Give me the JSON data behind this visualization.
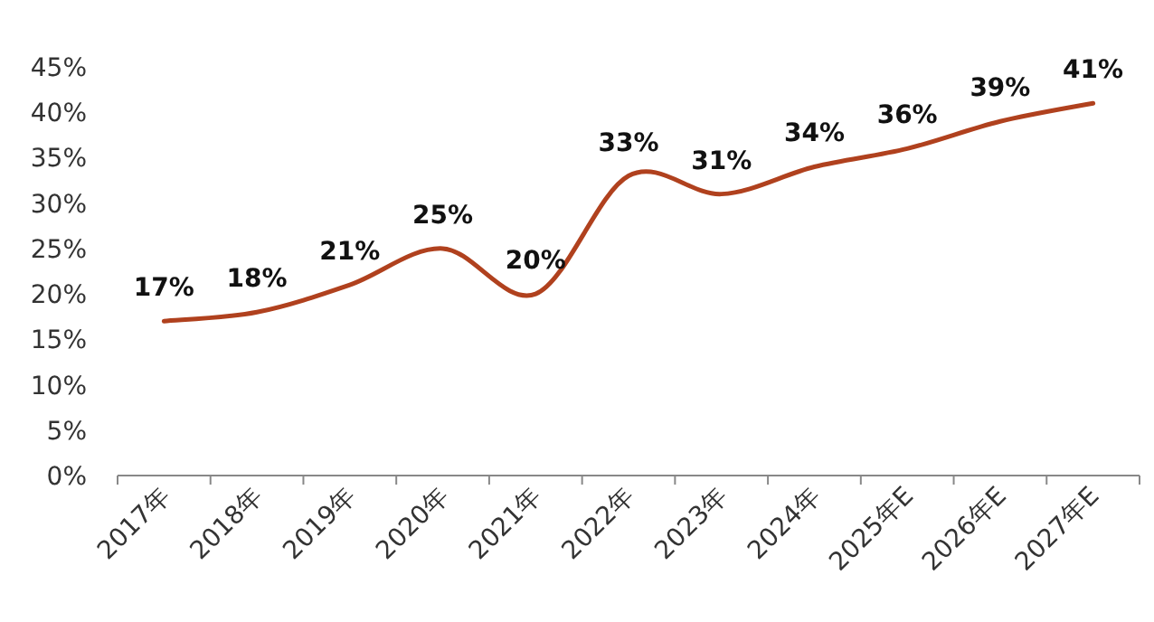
{
  "chart_data": {
    "type": "line",
    "categories": [
      "2017年",
      "2018年",
      "2019年",
      "2020年",
      "2021年",
      "2022年",
      "2023年",
      "2024年",
      "2025年E",
      "2026年E",
      "2027年E"
    ],
    "series": [
      {
        "color": "#b0411e",
        "values": [
          17,
          18,
          21,
          25,
          20,
          33,
          31,
          34,
          36,
          39,
          41
        ],
        "value_labels": [
          "17%",
          "18%",
          "21%",
          "25%",
          "20%",
          "33%",
          "31%",
          "34%",
          "36%",
          "39%",
          "41%"
        ]
      }
    ],
    "ylim": [
      0,
      45
    ],
    "yticks": [
      {
        "value": 0,
        "label": "0%"
      },
      {
        "value": 5,
        "label": "5%"
      },
      {
        "value": 10,
        "label": "10%"
      },
      {
        "value": 15,
        "label": "15%"
      },
      {
        "value": 20,
        "label": "20%"
      },
      {
        "value": 25,
        "label": "25%"
      },
      {
        "value": 30,
        "label": "30%"
      },
      {
        "value": 35,
        "label": "35%"
      },
      {
        "value": 40,
        "label": "40%"
      },
      {
        "value": 45,
        "label": "45%"
      }
    ],
    "grid": false,
    "marker": "none",
    "line_style": "solid"
  }
}
